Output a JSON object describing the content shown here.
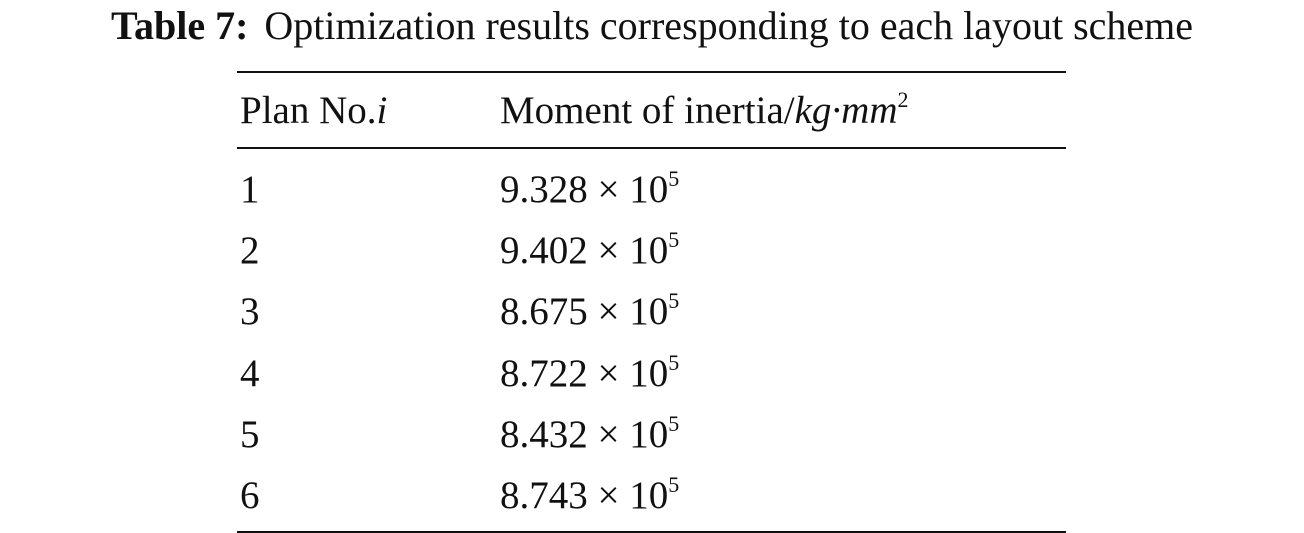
{
  "caption": {
    "label": "Table 7:",
    "text": "Optimization results corresponding to each layout scheme"
  },
  "table": {
    "header": [
      [
        "Plan No.",
        "i"
      ],
      [
        "Moment of inertia/",
        "kg·mm",
        "2"
      ]
    ],
    "rows": [
      [
        "1",
        [
          "9.328 × 10",
          "5"
        ]
      ],
      [
        "2",
        [
          "9.402 × 10",
          "5"
        ]
      ],
      [
        "3",
        [
          "8.675 × 10",
          "5"
        ]
      ],
      [
        "4",
        [
          "8.722 × 10",
          "5"
        ]
      ],
      [
        "5",
        [
          "8.432 × 10",
          "5"
        ]
      ],
      [
        "6",
        [
          "8.743 × 10",
          "5"
        ]
      ]
    ]
  }
}
